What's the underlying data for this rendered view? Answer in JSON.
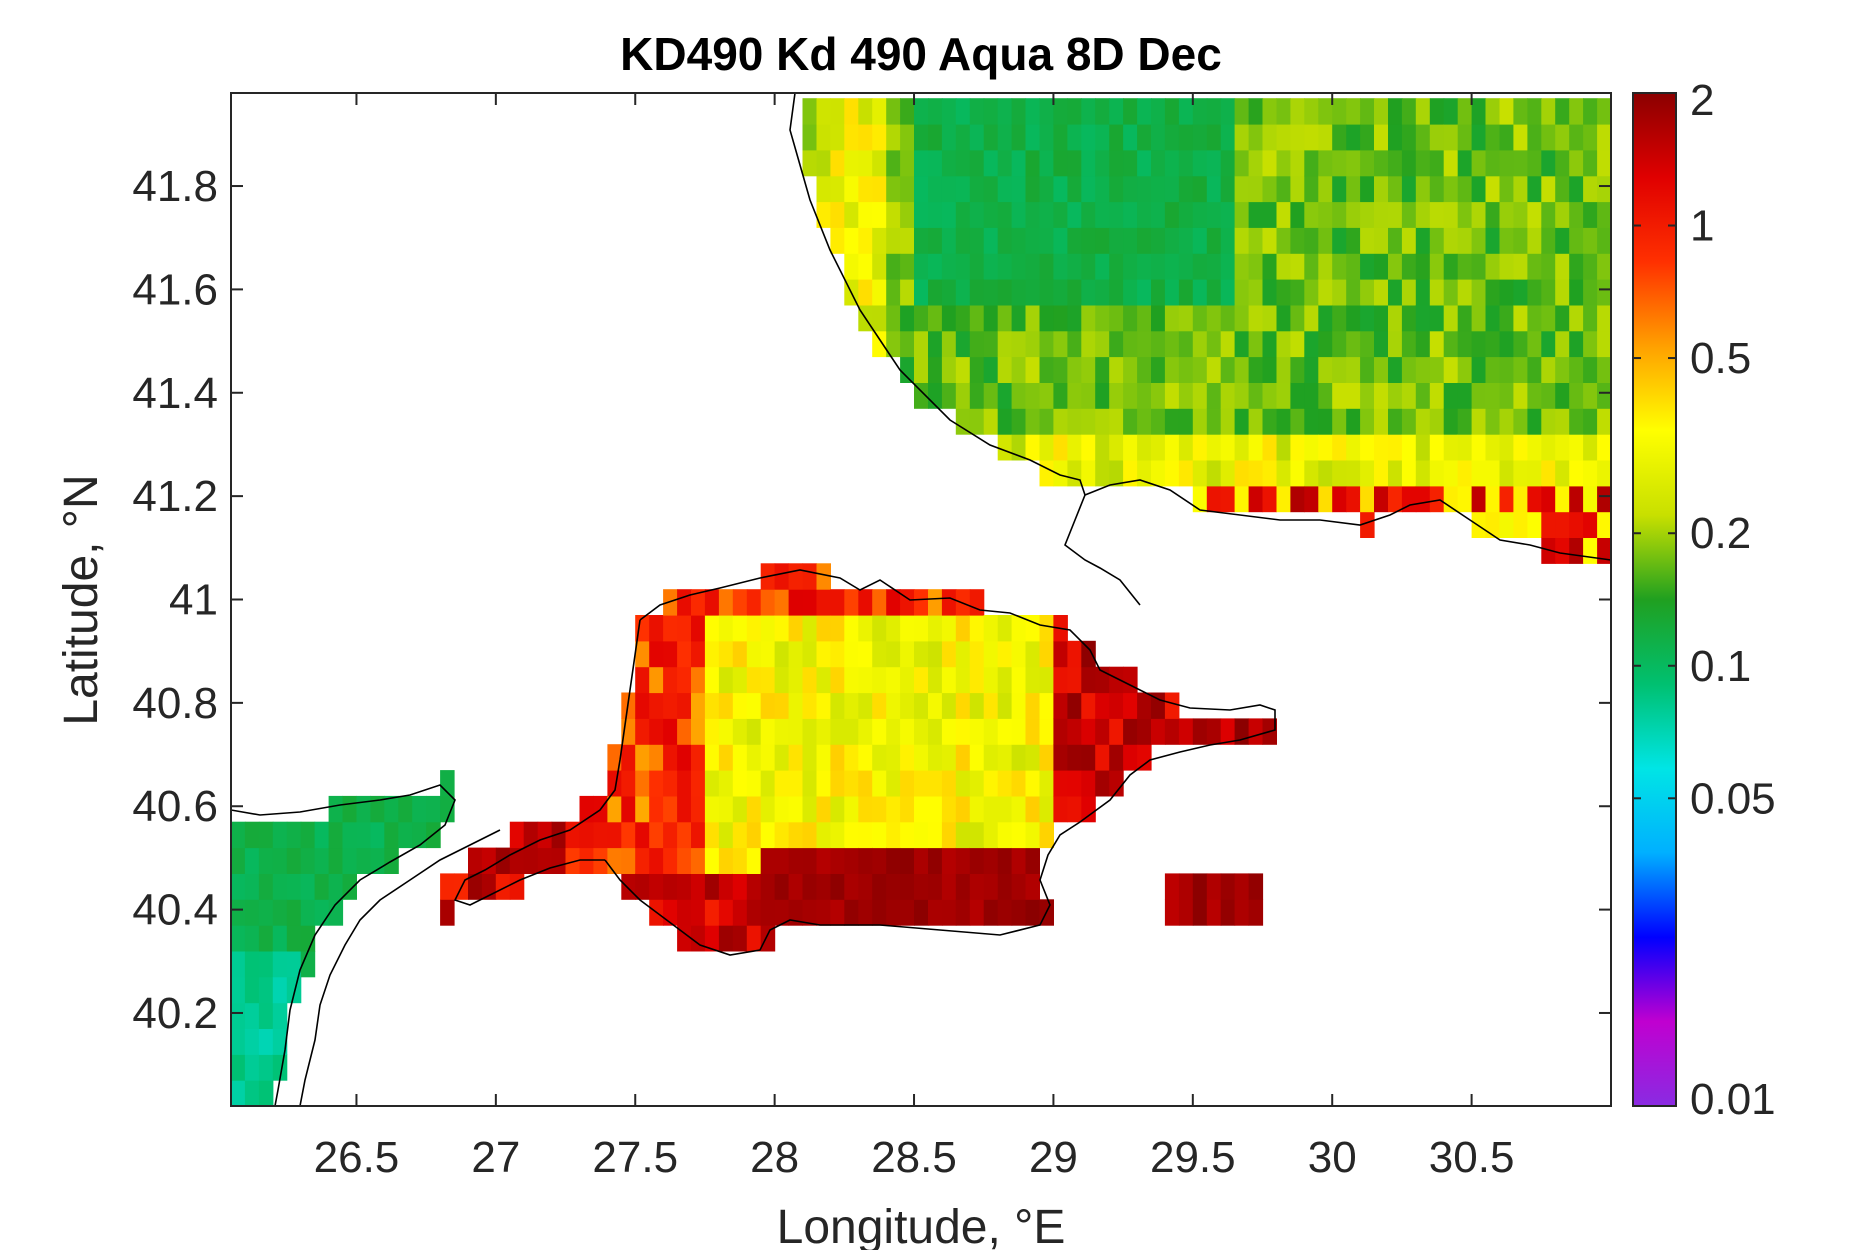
{
  "chart_data": {
    "type": "heatmap",
    "title": "KD490 Kd 490 Aqua 8D Dec",
    "xlabel": "Longitude, °E",
    "ylabel": "Latitude, °N",
    "xlim": [
      26.05,
      31.0
    ],
    "ylim": [
      40.02,
      41.98
    ],
    "xticks": [
      26.5,
      27,
      27.5,
      28,
      28.5,
      29,
      29.5,
      30,
      30.5
    ],
    "xtick_labels": [
      "26.5",
      "27",
      "27.5",
      "28",
      "28.5",
      "29",
      "29.5",
      "30",
      "30.5"
    ],
    "yticks": [
      40.2,
      40.4,
      40.6,
      40.8,
      41.0,
      41.2,
      41.4,
      41.6,
      41.8
    ],
    "ytick_labels": [
      "40.2",
      "40.4",
      "40.6",
      "40.8",
      "41",
      "41.2",
      "41.4",
      "41.6",
      "41.8"
    ],
    "colorbar": {
      "scale": "log",
      "range": [
        0.01,
        2
      ],
      "ticks": [
        0.01,
        0.05,
        0.1,
        0.2,
        0.5,
        1,
        2
      ],
      "tick_labels": [
        "0.01",
        "0.05",
        "0.1",
        "0.2",
        "0.5",
        "1",
        "2"
      ],
      "colormap": [
        "#8a2be2",
        "#c000d0",
        "#0000ff",
        "#00b0ff",
        "#00e5e5",
        "#00c070",
        "#20a020",
        "#c8e000",
        "#ffff00",
        "#ffa000",
        "#ff3000",
        "#e00000",
        "#8b0000"
      ]
    },
    "regions": [
      {
        "name": "",
        "lon": [
          26.9,
          31.0
        ],
        "lat": [
          41.1,
          41.98
        ],
        "value": 0.15
      },
      {
        "name": "",
        "lon": [
          27.4,
          29.2
        ],
        "lat": [
          40.45,
          41.05
        ],
        "value": 0.35
      },
      {
        "name": "",
        "lon": [
          26.05,
          26.8
        ],
        "lat": [
          40.02,
          40.65
        ],
        "value": 0.1
      },
      {
        "name": "",
        "lon": [
          26.7,
          29.1
        ],
        "lat": [
          40.35,
          40.5
        ],
        "value": 1.5
      },
      {
        "name": "",
        "lon": [
          29.1,
          29.7
        ],
        "lat": [
          40.7,
          40.85
        ],
        "value": 1.5
      },
      {
        "name": "",
        "lon": [
          29.35,
          29.7
        ],
        "lat": [
          40.4,
          40.48
        ],
        "value": 1.8
      }
    ],
    "grid": false
  }
}
